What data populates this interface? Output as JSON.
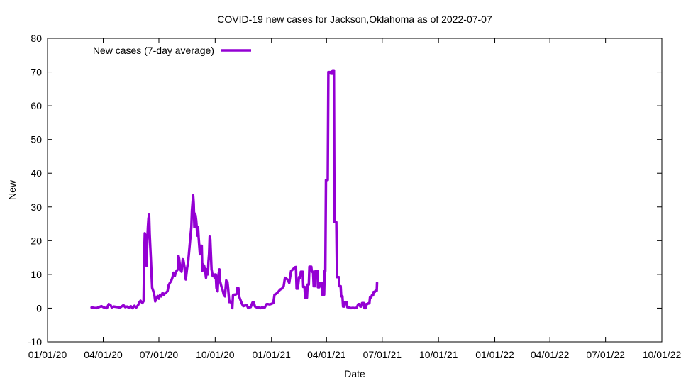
{
  "chart_data": {
    "type": "line",
    "title": "COVID-19 new cases for Jackson,Oklahoma as of 2022-07-07",
    "xlabel": "Date",
    "ylabel": "New",
    "ylim": [
      -10,
      80
    ],
    "yticks": [
      -10,
      0,
      10,
      20,
      30,
      40,
      50,
      60,
      70,
      80
    ],
    "xlim_days": [
      0,
      1004
    ],
    "xticks": [
      {
        "day": 0,
        "label": "01/01/20"
      },
      {
        "day": 91,
        "label": "04/01/20"
      },
      {
        "day": 182,
        "label": "07/01/20"
      },
      {
        "day": 274,
        "label": "10/01/20"
      },
      {
        "day": 366,
        "label": "01/01/21"
      },
      {
        "day": 456,
        "label": "04/01/21"
      },
      {
        "day": 547,
        "label": "07/01/21"
      },
      {
        "day": 639,
        "label": "10/01/21"
      },
      {
        "day": 731,
        "label": "01/01/22"
      },
      {
        "day": 821,
        "label": "04/01/22"
      },
      {
        "day": 912,
        "label": "07/01/22"
      },
      {
        "day": 1004,
        "label": "10/01/22"
      }
    ],
    "legend": {
      "label": "New cases (7-day average)",
      "position": "top-left"
    },
    "series": [
      {
        "name": "New cases (7-day average)",
        "color": "#9400d3",
        "points": [
          [
            72,
            0.2
          ],
          [
            76,
            0.1
          ],
          [
            80,
            0
          ],
          [
            84,
            0.3
          ],
          [
            88,
            0.6
          ],
          [
            91,
            0.3
          ],
          [
            94,
            0.1
          ],
          [
            97,
            0
          ],
          [
            100,
            1.2
          ],
          [
            103,
            0.9
          ],
          [
            105,
            0.2
          ],
          [
            108,
            0.5
          ],
          [
            111,
            0.4
          ],
          [
            115,
            0.3
          ],
          [
            118,
            0.1
          ],
          [
            122,
            0.6
          ],
          [
            124,
            0.9
          ],
          [
            127,
            0.3
          ],
          [
            130,
            0.5
          ],
          [
            133,
            0.1
          ],
          [
            136,
            0.6
          ],
          [
            139,
            0
          ],
          [
            142,
            0.7
          ],
          [
            145,
            0.2
          ],
          [
            148,
            0.9
          ],
          [
            150,
            1.7
          ],
          [
            152,
            2.2
          ],
          [
            155,
            1.5
          ],
          [
            157,
            2.1
          ],
          [
            158,
            16
          ],
          [
            159,
            22.2
          ],
          [
            160,
            21.5
          ],
          [
            161,
            18
          ],
          [
            162,
            12.5
          ],
          [
            163,
            20
          ],
          [
            164,
            24
          ],
          [
            165,
            26.5
          ],
          [
            166,
            27.7
          ],
          [
            167,
            22
          ],
          [
            168,
            18
          ],
          [
            169,
            14
          ],
          [
            170,
            10
          ],
          [
            171,
            6
          ],
          [
            172,
            5.5
          ],
          [
            173,
            5
          ],
          [
            175,
            3.5
          ],
          [
            176,
            2
          ],
          [
            178,
            2.8
          ],
          [
            180,
            3.6
          ],
          [
            182,
            2.8
          ],
          [
            184,
            4
          ],
          [
            186,
            3.5
          ],
          [
            188,
            4.5
          ],
          [
            190,
            4
          ],
          [
            193,
            4.5
          ],
          [
            196,
            5
          ],
          [
            198,
            6.8
          ],
          [
            200,
            7.5
          ],
          [
            202,
            8
          ],
          [
            204,
            9
          ],
          [
            206,
            10.5
          ],
          [
            208,
            9.5
          ],
          [
            210,
            10.8
          ],
          [
            213,
            11.5
          ],
          [
            214,
            15.5
          ],
          [
            215,
            14.8
          ],
          [
            217,
            11.5
          ],
          [
            219,
            10.8
          ],
          [
            221,
            14.5
          ],
          [
            222,
            14.2
          ],
          [
            224,
            12
          ],
          [
            225,
            9.5
          ],
          [
            226,
            8.5
          ],
          [
            228,
            11.8
          ],
          [
            230,
            14
          ],
          [
            232,
            18
          ],
          [
            234,
            22
          ],
          [
            235,
            24
          ],
          [
            236,
            29
          ],
          [
            238,
            33.4
          ],
          [
            239,
            31
          ],
          [
            240,
            24
          ],
          [
            241,
            28
          ],
          [
            242,
            27.5
          ],
          [
            243,
            26
          ],
          [
            245,
            21.5
          ],
          [
            246,
            24
          ],
          [
            247,
            21
          ],
          [
            249,
            16
          ],
          [
            250,
            18.5
          ],
          [
            252,
            18.5
          ],
          [
            253,
            11
          ],
          [
            254,
            13
          ],
          [
            256,
            12.5
          ],
          [
            258,
            10.5
          ],
          [
            259,
            9
          ],
          [
            260,
            11.5
          ],
          [
            262,
            10
          ],
          [
            263,
            14
          ],
          [
            264,
            16
          ],
          [
            265,
            21.2
          ],
          [
            266,
            20.5
          ],
          [
            268,
            11.5
          ],
          [
            270,
            9.5
          ],
          [
            272,
            10
          ],
          [
            273,
            9
          ],
          [
            275,
            10
          ],
          [
            276,
            6
          ],
          [
            278,
            5
          ],
          [
            279,
            9.5
          ],
          [
            280,
            10.5
          ],
          [
            281,
            11.5
          ],
          [
            282,
            8
          ],
          [
            284,
            6.5
          ],
          [
            285,
            6
          ],
          [
            286,
            5.5
          ],
          [
            288,
            4
          ],
          [
            290,
            3.5
          ],
          [
            292,
            8.2
          ],
          [
            293,
            7.5
          ],
          [
            294,
            7.8
          ],
          [
            295,
            6
          ],
          [
            297,
            1.8
          ],
          [
            299,
            2
          ],
          [
            301,
            1.2
          ],
          [
            302,
            0
          ],
          [
            303,
            3.8
          ],
          [
            305,
            4
          ],
          [
            307,
            4
          ],
          [
            309,
            4.2
          ],
          [
            310,
            5.9
          ],
          [
            312,
            5.9
          ],
          [
            313,
            3.5
          ],
          [
            316,
            2.1
          ],
          [
            318,
            1.2
          ],
          [
            320,
            0.6
          ],
          [
            323,
            0.8
          ],
          [
            326,
            0.8
          ],
          [
            328,
            0
          ],
          [
            330,
            0.3
          ],
          [
            332,
            0.3
          ],
          [
            335,
            1.7
          ],
          [
            337,
            1.7
          ],
          [
            339,
            0.5
          ],
          [
            342,
            0.2
          ],
          [
            345,
            0.2
          ],
          [
            348,
            0
          ],
          [
            351,
            0.3
          ],
          [
            353,
            0.1
          ],
          [
            355,
            0.2
          ],
          [
            358,
            1.2
          ],
          [
            360,
            1.2
          ],
          [
            363,
            1.1
          ],
          [
            366,
            1.3
          ],
          [
            369,
            1.5
          ],
          [
            371,
            4
          ],
          [
            374,
            4.3
          ],
          [
            377,
            4.8
          ],
          [
            380,
            5.5
          ],
          [
            383,
            5.8
          ],
          [
            386,
            6.5
          ],
          [
            388,
            9
          ],
          [
            392,
            8.5
          ],
          [
            395,
            7.5
          ],
          [
            398,
            11
          ],
          [
            401,
            11.5
          ],
          [
            404,
            12.1
          ],
          [
            406,
            12.2
          ],
          [
            407,
            5.8
          ],
          [
            409,
            5.8
          ],
          [
            411,
            9.2
          ],
          [
            413,
            9
          ],
          [
            414,
            10.8
          ],
          [
            417,
            10.8
          ],
          [
            418,
            6.3
          ],
          [
            420,
            6.3
          ],
          [
            421,
            3.1
          ],
          [
            424,
            3.1
          ],
          [
            425,
            7
          ],
          [
            427,
            7
          ],
          [
            428,
            12.3
          ],
          [
            431,
            12.3
          ],
          [
            432,
            10.8
          ],
          [
            434,
            10.8
          ],
          [
            435,
            6.5
          ],
          [
            437,
            6.5
          ],
          [
            438,
            11
          ],
          [
            441,
            11
          ],
          [
            442,
            6.2
          ],
          [
            444,
            6.2
          ],
          [
            445,
            7.5
          ],
          [
            448,
            7.5
          ],
          [
            449,
            4
          ],
          [
            452,
            4
          ],
          [
            453,
            11
          ],
          [
            454,
            11
          ],
          [
            455,
            38
          ],
          [
            458,
            38
          ],
          [
            459,
            70
          ],
          [
            462,
            70
          ],
          [
            463,
            69.5
          ],
          [
            465,
            69.5
          ],
          [
            466,
            70.5
          ],
          [
            468,
            70.5
          ],
          [
            469,
            25.5
          ],
          [
            472,
            25.5
          ],
          [
            473,
            9.2
          ],
          [
            476,
            9.2
          ],
          [
            477,
            6.5
          ],
          [
            479,
            6.5
          ],
          [
            480,
            3.5
          ],
          [
            482,
            3.5
          ],
          [
            483,
            0.5
          ],
          [
            485,
            0.5
          ],
          [
            486,
            1.8
          ],
          [
            489,
            1.8
          ],
          [
            490,
            0.3
          ],
          [
            493,
            0.2
          ],
          [
            496,
            0
          ],
          [
            499,
            0.1
          ],
          [
            502,
            0
          ],
          [
            505,
            0.1
          ],
          [
            508,
            1.2
          ],
          [
            510,
            1.2
          ],
          [
            511,
            0.5
          ],
          [
            513,
            0.5
          ],
          [
            514,
            1.5
          ],
          [
            517,
            1.5
          ],
          [
            518,
            0
          ],
          [
            520,
            0
          ],
          [
            521,
            1.2
          ],
          [
            523,
            1.2
          ],
          [
            524,
            1.4
          ],
          [
            526,
            1.4
          ],
          [
            527,
            3.2
          ],
          [
            529,
            3.2
          ],
          [
            530,
            3.8
          ],
          [
            532,
            3.8
          ],
          [
            533,
            4.8
          ],
          [
            535,
            4.8
          ],
          [
            536,
            5.2
          ],
          [
            538,
            5.2
          ],
          [
            538.5,
            7.5
          ]
        ]
      }
    ]
  }
}
